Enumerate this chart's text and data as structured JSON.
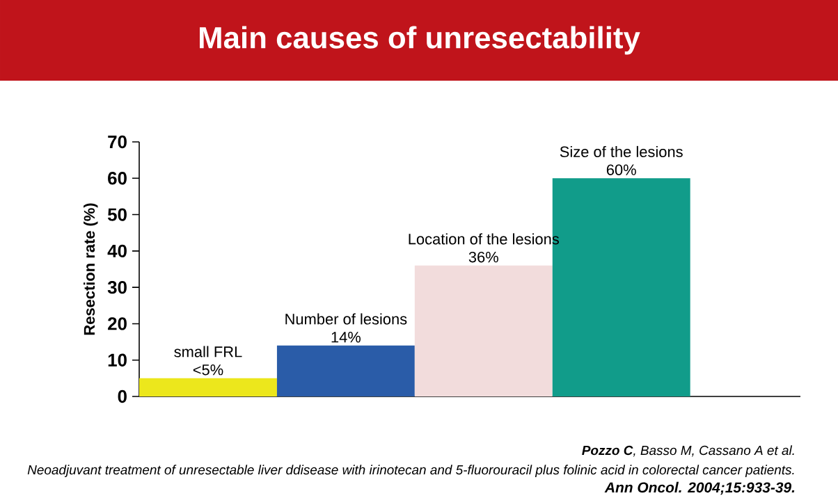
{
  "chart_data": {
    "type": "bar",
    "title": "Main causes of unresectability",
    "ylabel": "Resection rate (%)",
    "categories": [
      "small FRL",
      "Number of lesions",
      "Location of the lesions",
      "Size of the lesions"
    ],
    "values": [
      5,
      14,
      36,
      60
    ],
    "value_labels": [
      "<5%",
      "14%",
      "36%",
      "60%"
    ],
    "colors": [
      "#ece71c",
      "#2a5ca8",
      "#f2dcdc",
      "#119c8a"
    ],
    "ylim": [
      0,
      70
    ],
    "yticks": [
      0,
      10,
      20,
      30,
      40,
      50,
      60,
      70
    ],
    "grid": false,
    "annotations": [
      "**Pozzo C**, Basso M, Cassano A et al.",
      "Neoadjuvant treatment of unresectable liver ddisease with irinotecan and 5-fluorouracil plus folinic acid in colorectal cancer  patients.",
      "Ann Oncol. 2004;15:933-39."
    ]
  }
}
